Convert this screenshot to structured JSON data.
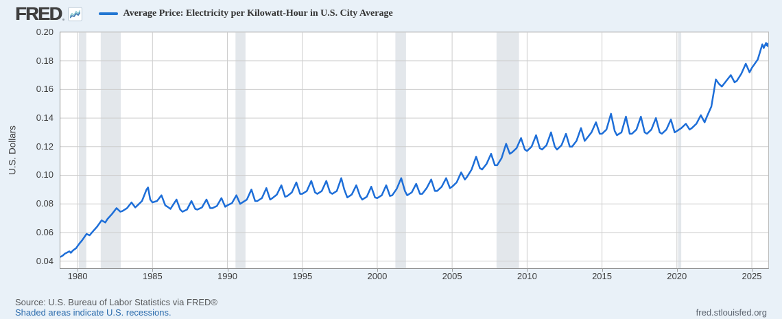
{
  "header": {
    "logo_text": "FRED",
    "legend_label": "Average Price: Electricity per Kilowatt-Hour in U.S. City Average",
    "legend_color": "#2176d2"
  },
  "footer": {
    "source_text": "Source: U.S. Bureau of Labor Statistics via FRED®",
    "recession_note": "Shaded areas indicate U.S. recessions.",
    "site_url": "fred.stlouisfed.org"
  },
  "chart_data": {
    "type": "line",
    "title": "Average Price: Electricity per Kilowatt-Hour in U.S. City Average",
    "xlabel": "",
    "ylabel": "U.S. Dollars",
    "legend_position": "top-left",
    "grid": true,
    "line_color": "#1d6ed8",
    "grid_color": "#cdcdcd",
    "recession_color": "#e3e7eb",
    "x_domain": [
      1978.85,
      2026.1
    ],
    "y_domain": [
      0.035,
      0.2
    ],
    "x_ticks": [
      1980,
      1985,
      1990,
      1995,
      2000,
      2005,
      2010,
      2015,
      2020,
      2025
    ],
    "y_ticks": [
      0.04,
      0.06,
      0.08,
      0.1,
      0.12,
      0.14,
      0.16,
      0.18,
      0.2
    ],
    "recession_bands": [
      [
        1980.08,
        1980.58
      ],
      [
        1981.54,
        1982.88
      ],
      [
        1990.54,
        1991.21
      ],
      [
        2001.21,
        2001.92
      ],
      [
        2007.96,
        2009.46
      ],
      [
        2020.08,
        2020.29
      ]
    ],
    "series": [
      {
        "name": "Average Price: Electricity per Kilowatt-Hour in U.S. City Average",
        "units": "U.S. Dollars",
        "points": [
          [
            1978.87,
            0.043
          ],
          [
            1979.0,
            0.0438
          ],
          [
            1979.15,
            0.0452
          ],
          [
            1979.3,
            0.046
          ],
          [
            1979.45,
            0.0468
          ],
          [
            1979.55,
            0.0458
          ],
          [
            1979.7,
            0.0475
          ],
          [
            1979.9,
            0.049
          ],
          [
            1980.1,
            0.052
          ],
          [
            1980.3,
            0.0545
          ],
          [
            1980.6,
            0.059
          ],
          [
            1980.8,
            0.058
          ],
          [
            1981.0,
            0.0605
          ],
          [
            1981.3,
            0.064
          ],
          [
            1981.6,
            0.0685
          ],
          [
            1981.85,
            0.067
          ],
          [
            1982.0,
            0.0695
          ],
          [
            1982.3,
            0.073
          ],
          [
            1982.6,
            0.077
          ],
          [
            1982.85,
            0.0745
          ],
          [
            1983.0,
            0.075
          ],
          [
            1983.3,
            0.077
          ],
          [
            1983.6,
            0.081
          ],
          [
            1983.85,
            0.0775
          ],
          [
            1984.0,
            0.079
          ],
          [
            1984.3,
            0.082
          ],
          [
            1984.6,
            0.09
          ],
          [
            1984.7,
            0.0915
          ],
          [
            1984.85,
            0.083
          ],
          [
            1985.0,
            0.081
          ],
          [
            1985.3,
            0.082
          ],
          [
            1985.6,
            0.086
          ],
          [
            1985.85,
            0.079
          ],
          [
            1986.0,
            0.078
          ],
          [
            1986.2,
            0.0765
          ],
          [
            1986.6,
            0.083
          ],
          [
            1986.85,
            0.076
          ],
          [
            1987.0,
            0.0745
          ],
          [
            1987.3,
            0.076
          ],
          [
            1987.6,
            0.082
          ],
          [
            1987.85,
            0.0765
          ],
          [
            1988.0,
            0.076
          ],
          [
            1988.3,
            0.0775
          ],
          [
            1988.6,
            0.083
          ],
          [
            1988.85,
            0.077
          ],
          [
            1989.0,
            0.077
          ],
          [
            1989.3,
            0.0785
          ],
          [
            1989.6,
            0.084
          ],
          [
            1989.85,
            0.078
          ],
          [
            1990.0,
            0.079
          ],
          [
            1990.3,
            0.0805
          ],
          [
            1990.6,
            0.086
          ],
          [
            1990.85,
            0.08
          ],
          [
            1991.0,
            0.081
          ],
          [
            1991.3,
            0.083
          ],
          [
            1991.6,
            0.09
          ],
          [
            1991.85,
            0.082
          ],
          [
            1992.0,
            0.082
          ],
          [
            1992.3,
            0.084
          ],
          [
            1992.6,
            0.091
          ],
          [
            1992.85,
            0.083
          ],
          [
            1993.0,
            0.084
          ],
          [
            1993.3,
            0.0865
          ],
          [
            1993.6,
            0.093
          ],
          [
            1993.85,
            0.085
          ],
          [
            1994.0,
            0.0855
          ],
          [
            1994.3,
            0.088
          ],
          [
            1994.6,
            0.095
          ],
          [
            1994.85,
            0.087
          ],
          [
            1995.0,
            0.087
          ],
          [
            1995.3,
            0.089
          ],
          [
            1995.6,
            0.096
          ],
          [
            1995.85,
            0.088
          ],
          [
            1996.0,
            0.087
          ],
          [
            1996.3,
            0.089
          ],
          [
            1996.6,
            0.096
          ],
          [
            1996.85,
            0.088
          ],
          [
            1997.0,
            0.087
          ],
          [
            1997.3,
            0.089
          ],
          [
            1997.6,
            0.098
          ],
          [
            1997.8,
            0.09
          ],
          [
            1998.0,
            0.0845
          ],
          [
            1998.3,
            0.0865
          ],
          [
            1998.6,
            0.093
          ],
          [
            1998.85,
            0.0855
          ],
          [
            1999.0,
            0.083
          ],
          [
            1999.3,
            0.085
          ],
          [
            1999.6,
            0.092
          ],
          [
            1999.85,
            0.0845
          ],
          [
            2000.0,
            0.084
          ],
          [
            2000.3,
            0.086
          ],
          [
            2000.6,
            0.093
          ],
          [
            2000.85,
            0.0855
          ],
          [
            2001.0,
            0.086
          ],
          [
            2001.3,
            0.0905
          ],
          [
            2001.6,
            0.098
          ],
          [
            2001.85,
            0.089
          ],
          [
            2002.0,
            0.086
          ],
          [
            2002.3,
            0.088
          ],
          [
            2002.6,
            0.094
          ],
          [
            2002.85,
            0.087
          ],
          [
            2003.0,
            0.087
          ],
          [
            2003.3,
            0.091
          ],
          [
            2003.6,
            0.097
          ],
          [
            2003.85,
            0.089
          ],
          [
            2004.0,
            0.089
          ],
          [
            2004.3,
            0.092
          ],
          [
            2004.6,
            0.098
          ],
          [
            2004.85,
            0.091
          ],
          [
            2005.0,
            0.092
          ],
          [
            2005.3,
            0.095
          ],
          [
            2005.6,
            0.102
          ],
          [
            2005.85,
            0.097
          ],
          [
            2006.0,
            0.099
          ],
          [
            2006.3,
            0.104
          ],
          [
            2006.6,
            0.113
          ],
          [
            2006.85,
            0.105
          ],
          [
            2007.0,
            0.104
          ],
          [
            2007.3,
            0.108
          ],
          [
            2007.6,
            0.115
          ],
          [
            2007.85,
            0.107
          ],
          [
            2008.0,
            0.107
          ],
          [
            2008.3,
            0.112
          ],
          [
            2008.6,
            0.122
          ],
          [
            2008.85,
            0.115
          ],
          [
            2009.0,
            0.116
          ],
          [
            2009.3,
            0.119
          ],
          [
            2009.6,
            0.126
          ],
          [
            2009.85,
            0.118
          ],
          [
            2010.0,
            0.117
          ],
          [
            2010.3,
            0.12
          ],
          [
            2010.6,
            0.128
          ],
          [
            2010.85,
            0.119
          ],
          [
            2011.0,
            0.118
          ],
          [
            2011.3,
            0.121
          ],
          [
            2011.6,
            0.13
          ],
          [
            2011.85,
            0.12
          ],
          [
            2012.0,
            0.118
          ],
          [
            2012.3,
            0.121
          ],
          [
            2012.6,
            0.129
          ],
          [
            2012.85,
            0.12
          ],
          [
            2013.0,
            0.12
          ],
          [
            2013.3,
            0.124
          ],
          [
            2013.6,
            0.133
          ],
          [
            2013.85,
            0.124
          ],
          [
            2014.0,
            0.126
          ],
          [
            2014.3,
            0.13
          ],
          [
            2014.6,
            0.137
          ],
          [
            2014.85,
            0.129
          ],
          [
            2015.0,
            0.129
          ],
          [
            2015.3,
            0.132
          ],
          [
            2015.6,
            0.143
          ],
          [
            2015.85,
            0.131
          ],
          [
            2016.0,
            0.128
          ],
          [
            2016.3,
            0.13
          ],
          [
            2016.6,
            0.141
          ],
          [
            2016.85,
            0.129
          ],
          [
            2017.0,
            0.129
          ],
          [
            2017.3,
            0.132
          ],
          [
            2017.6,
            0.141
          ],
          [
            2017.85,
            0.13
          ],
          [
            2018.0,
            0.129
          ],
          [
            2018.3,
            0.132
          ],
          [
            2018.6,
            0.14
          ],
          [
            2018.85,
            0.13
          ],
          [
            2019.0,
            0.129
          ],
          [
            2019.3,
            0.132
          ],
          [
            2019.6,
            0.139
          ],
          [
            2019.85,
            0.13
          ],
          [
            2020.0,
            0.131
          ],
          [
            2020.3,
            0.133
          ],
          [
            2020.6,
            0.136
          ],
          [
            2020.85,
            0.132
          ],
          [
            2021.0,
            0.133
          ],
          [
            2021.3,
            0.136
          ],
          [
            2021.6,
            0.142
          ],
          [
            2021.85,
            0.137
          ],
          [
            2022.0,
            0.141
          ],
          [
            2022.3,
            0.148
          ],
          [
            2022.6,
            0.167
          ],
          [
            2022.8,
            0.164
          ],
          [
            2023.0,
            0.162
          ],
          [
            2023.3,
            0.166
          ],
          [
            2023.6,
            0.17
          ],
          [
            2023.85,
            0.165
          ],
          [
            2024.0,
            0.166
          ],
          [
            2024.3,
            0.171
          ],
          [
            2024.6,
            0.178
          ],
          [
            2024.85,
            0.172
          ],
          [
            2025.0,
            0.175
          ],
          [
            2025.2,
            0.178
          ],
          [
            2025.4,
            0.181
          ],
          [
            2025.6,
            0.188
          ],
          [
            2025.7,
            0.1915
          ],
          [
            2025.8,
            0.189
          ],
          [
            2025.95,
            0.1925
          ],
          [
            2026.05,
            0.191
          ]
        ]
      }
    ]
  }
}
